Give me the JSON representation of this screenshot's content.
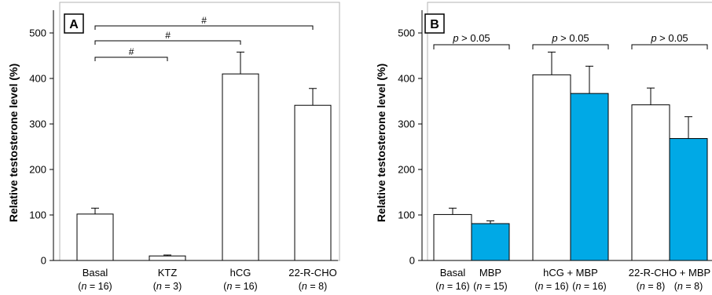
{
  "colors": {
    "white_bar": "#ffffff",
    "mbp_bar": "#00a9e6",
    "axis": "#000000",
    "frame": "#b3b3b3"
  },
  "chart_data": [
    {
      "panel": "A",
      "type": "bar",
      "ylabel": "Relative testosterone level (%)",
      "ylim": [
        0,
        550
      ],
      "yticks": [
        "0",
        "100",
        "200",
        "300",
        "400",
        "500"
      ],
      "categories": [
        "Basal",
        "KTZ",
        "hCG",
        "22-R-CHO"
      ],
      "n_labels": [
        "(n = 16)",
        "(n = 3)",
        "(n = 16)",
        "(n = 8)"
      ],
      "values": [
        102,
        10,
        410,
        341
      ],
      "errors": [
        13,
        2,
        48,
        37
      ],
      "comparisons": [
        {
          "from": "Basal",
          "to": "KTZ",
          "label": "#"
        },
        {
          "from": "Basal",
          "to": "hCG",
          "label": "#"
        },
        {
          "from": "Basal",
          "to": "22-R-CHO",
          "label": "#"
        }
      ],
      "grid": false
    },
    {
      "panel": "B",
      "type": "bar",
      "ylabel": "Relative testosterone level (%)",
      "ylim": [
        0,
        550
      ],
      "yticks": [
        "0",
        "100",
        "200",
        "300",
        "400",
        "500"
      ],
      "groups": [
        {
          "labels": [
            "Basal",
            "MBP"
          ],
          "n_labels": [
            "(n = 16)",
            "(n = 15)"
          ],
          "values": [
            101,
            81
          ],
          "errors": [
            14,
            6
          ],
          "sig": "p > 0.05"
        },
        {
          "labels": [
            "hCG + MBP"
          ],
          "n_labels": [
            "(n = 16)",
            "(n = 16)"
          ],
          "values": [
            408,
            367
          ],
          "errors": [
            50,
            60
          ],
          "sig": "p > 0.05"
        },
        {
          "labels": [
            "22-R-CHO + MBP"
          ],
          "n_labels": [
            "(n = 8)",
            "(n = 8)"
          ],
          "values": [
            342,
            268
          ],
          "errors": [
            37,
            48
          ],
          "sig": "p > 0.05"
        }
      ],
      "grid": false
    }
  ]
}
